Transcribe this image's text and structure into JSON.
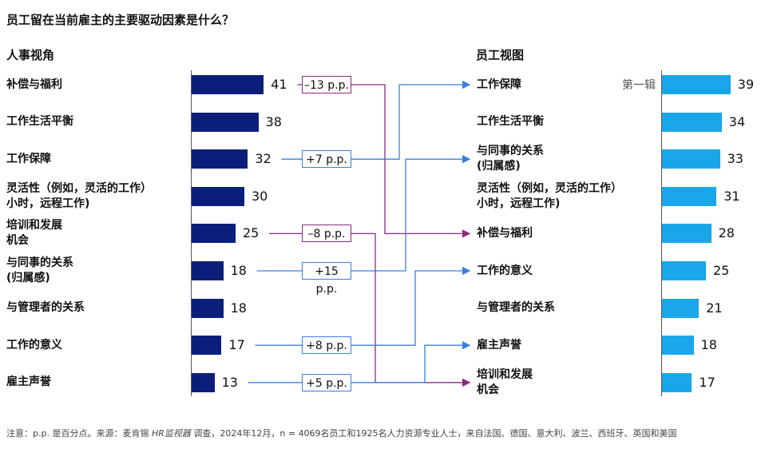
{
  "title": "员工留在当前雇主的主要驱动因素是什么？",
  "hr_title": "人事视角",
  "emp_title": "员工视图",
  "annotation": "第一辑",
  "footnote_a": "注意：p.p. 是百分点。来源：麦肯锡",
  "footnote_b": "HR监视器",
  "footnote_c": "调查，2024年12月，n = 4069名员工和1925名人力资源专业人士，来自法国、德国、意大利、波兰、西班牙、英国和美国",
  "chart_data": {
    "type": "bar",
    "hr_series": [
      {
        "line1": "补偿与福利",
        "line2": "",
        "value": 41
      },
      {
        "line1": "工作生活平衡",
        "line2": "",
        "value": 38
      },
      {
        "line1": "工作保障",
        "line2": "",
        "value": 32
      },
      {
        "line1": "灵活性（例如，灵活的工作）",
        "line2": "小时，远程工作)",
        "value": 30
      },
      {
        "line1": "培训和发展",
        "line2": "机会",
        "value": 25
      },
      {
        "line1": "与同事的关系",
        "line2": "(归属感)",
        "value": 18
      },
      {
        "line1": "与管理者的关系",
        "line2": "",
        "value": 18
      },
      {
        "line1": "工作的意义",
        "line2": "",
        "value": 17
      },
      {
        "line1": "雇主声誉",
        "line2": "",
        "value": 13
      }
    ],
    "employee_series": [
      {
        "line1": "工作保障",
        "line2": "",
        "value": 39
      },
      {
        "line1": "工作生活平衡",
        "line2": "",
        "value": 34
      },
      {
        "line1": "与同事的关系",
        "line2": "(归属感)",
        "value": 33
      },
      {
        "line1": "灵活性（例如，灵活的工作）",
        "line2": "小时，远程工作)",
        "value": 31
      },
      {
        "line1": "补偿与福利",
        "line2": "",
        "value": 28
      },
      {
        "line1": "工作的意义",
        "line2": "",
        "value": 25
      },
      {
        "line1": "与管理者的关系",
        "line2": "",
        "value": 21
      },
      {
        "line1": "雇主声誉",
        "line2": "",
        "value": 18
      },
      {
        "line1": "培训和发展",
        "line2": "机会",
        "value": 17
      }
    ],
    "gaps": [
      {
        "from": 0,
        "to": 4,
        "label": "–13 p.p.",
        "sign": "neg"
      },
      {
        "from": 2,
        "to": 0,
        "label": "+7 p.p.",
        "sign": "pos"
      },
      {
        "from": 4,
        "to": 8,
        "label": "–8 p.p.",
        "sign": "neg"
      },
      {
        "from": 5,
        "to": 2,
        "label": "+15 p.p.",
        "sign": "pos"
      },
      {
        "from": 7,
        "to": 5,
        "label": "+8 p.p.",
        "sign": "pos"
      },
      {
        "from": 8,
        "to": 7,
        "label": "+5 p.p.",
        "sign": "pos"
      }
    ],
    "colors": {
      "hr_bar": "#0b1f7a",
      "employee_bar": "#19a7ea",
      "negative_link": "#8a2a7b",
      "positive_link": "#3c7ee0"
    }
  }
}
